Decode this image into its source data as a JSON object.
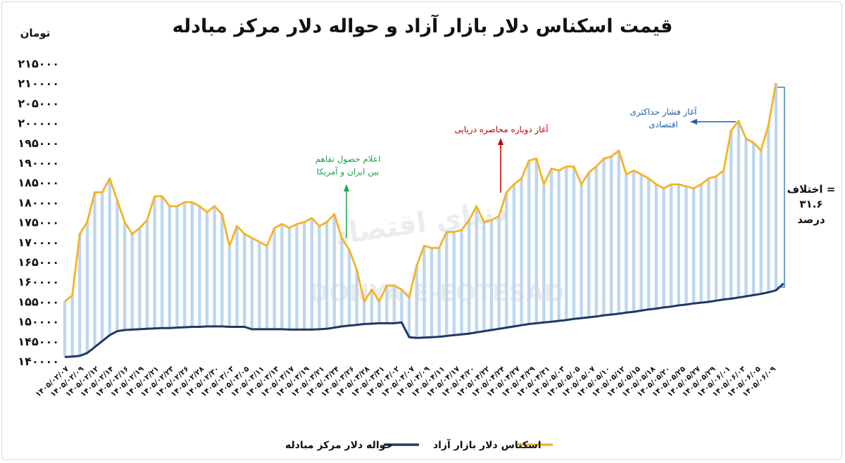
{
  "chart_data": {
    "type": "line",
    "title": "قیمت اسکناس دلار بازار آزاد و حواله دلار مرکز مبادله",
    "ylabel": "تومان",
    "ylim": [
      140000,
      215000
    ],
    "y_ticks": [
      "۱۴۰۰۰۰",
      "۱۴۵۰۰۰",
      "۱۵۰۰۰۰",
      "۱۵۵۰۰۰",
      "۱۶۰۰۰۰",
      "۱۶۵۰۰۰",
      "۱۷۰۰۰۰",
      "۱۷۵۰۰۰",
      "۱۸۰۰۰۰",
      "۱۸۵۰۰۰",
      "۱۹۰۰۰۰",
      "۱۹۵۰۰۰",
      "۲۰۰۰۰۰",
      "۲۰۵۰۰۰",
      "۲۱۰۰۰۰",
      "۲۱۵۰۰۰"
    ],
    "x_labels": [
      "۱۴۰۵/۰۲/۰۷",
      "۱۴۰۵/۰۲/۰۹",
      "۱۴۰۵/۰۲/۱۲",
      "۱۴۰۵/۰۲/۱۴",
      "۱۴۰۵/۰۲/۱۶",
      "۱۴۰۵/۰۲/۱۹",
      "۱۴۰۵/۰۲/۲۱",
      "۱۴۰۵/۰۲/۲۳",
      "۱۴۰۵/۰۲/۲۶",
      "۱۴۰۵/۰۲/۲۸",
      "۱۴۰۵/۰۲/۳۰",
      "۱۴۰۵/۰۳/۰۳",
      "۱۴۰۵/۰۳/۰۵",
      "۱۴۰۵/۰۳/۱۱",
      "۱۴۰۵/۰۳/۱۳",
      "۱۴۰۵/۰۳/۱۷",
      "۱۴۰۵/۰۳/۱۹",
      "۱۴۰۵/۰۳/۲۱",
      "۱۴۰۵/۰۳/۲۴",
      "۱۴۰۵/۰۳/۲۶",
      "۱۴۰۵/۰۳/۲۸",
      "۱۴۰۵/۰۳/۳۱",
      "۱۴۰۵/۰۴/۰۲",
      "۱۴۰۵/۰۴/۰۷",
      "۱۴۰۵/۰۴/۰۹",
      "۱۴۰۵/۰۴/۱۱",
      "۱۴۰۵/۰۴/۱۷",
      "۱۴۰۵/۰۴/۲۰",
      "۱۴۰۵/۰۴/۲۲",
      "۱۴۰۵/۰۴/۲۴",
      "۱۴۰۵/۰۴/۲۷",
      "۱۴۰۵/۰۴/۲۹",
      "۱۴۰۵/۰۴/۳۱",
      "۱۴۰۵/۰۵/۰۳",
      "۱۴۰۵/۰۵/۰۵",
      "۱۴۰۵/۰۵/۰۷",
      "۱۴۰۵/۰۵/۱۰",
      "۱۴۰۵/۰۵/۱۲",
      "۱۴۰۵/۰۵/۱۵",
      "۱۴۰۵/۰۵/۱۸",
      "۱۴۰۵/۰۵/۲۰",
      "۱۴۰۵/۰۵/۲۵",
      "۱۴۰۵/۰۵/۲۷",
      "۱۴۰۵/۰۵/۲۹",
      "۱۴۰۵/۰۶/۰۱",
      "۱۴۰۵/۰۶/۰۳",
      "۱۴۰۵/۰۶/۰۵",
      "۱۴۰۵/۰۶/۰۹"
    ],
    "series": [
      {
        "name": "اسکناس دلار بازار آزاد",
        "color": "#f5b324",
        "values": [
          155000,
          156500,
          172000,
          175000,
          182500,
          182500,
          186000,
          180500,
          175000,
          172000,
          173500,
          175500,
          181500,
          181500,
          179000,
          179000,
          180000,
          180000,
          179000,
          177500,
          179000,
          177000,
          169000,
          174000,
          172000,
          171000,
          170000,
          169000,
          173500,
          174500,
          173500,
          174500,
          175000,
          176000,
          174000,
          175000,
          177000,
          171000,
          168000,
          163000,
          155000,
          158000,
          155000,
          159000,
          159000,
          158000,
          156000,
          164000,
          169000,
          168500,
          168500,
          172500,
          172500,
          173000,
          175500,
          179000,
          175000,
          175500,
          176500,
          182500,
          184500,
          186000,
          190500,
          191000,
          184500,
          188500,
          188000,
          189000,
          189000,
          184500,
          187500,
          189000,
          191000,
          191500,
          193000,
          187000,
          188000,
          187000,
          186000,
          184500,
          183500,
          184500,
          184500,
          184000,
          183500,
          184500,
          186000,
          186500,
          188000,
          198000,
          200500,
          196000,
          195000,
          193000,
          199500,
          210000
        ],
        "first_x_index": 0
      },
      {
        "name": "حواله دلار مرکز مبادله",
        "color": "#1f3864",
        "values": [
          141000,
          141100,
          141300,
          142000,
          143500,
          145000,
          146500,
          147500,
          147800,
          147900,
          148000,
          148100,
          148200,
          148300,
          148300,
          148400,
          148500,
          148600,
          148600,
          148700,
          148700,
          148700,
          148600,
          148600,
          148600,
          148000,
          148000,
          148000,
          148000,
          148000,
          147900,
          147900,
          147900,
          147900,
          148000,
          148100,
          148400,
          148700,
          148900,
          149100,
          149300,
          149400,
          149500,
          149500,
          149500,
          149700,
          146000,
          145800,
          145900,
          146000,
          146100,
          146300,
          146500,
          146700,
          146900,
          147200,
          147500,
          147800,
          148100,
          148400,
          148700,
          149000,
          149300,
          149500,
          149700,
          149900,
          150100,
          150300,
          150600,
          150800,
          151000,
          151200,
          151500,
          151700,
          151900,
          152200,
          152400,
          152700,
          153000,
          153200,
          153500,
          153700,
          154000,
          154200,
          154500,
          154700,
          154900,
          155200,
          155500,
          155700,
          156000,
          156300,
          156600,
          156900,
          157300,
          157800,
          159500
        ],
        "first_x_index": 0
      }
    ],
    "annotations": [
      {
        "text_lines": [
          "اعلام حصول تفاهم",
          "بین ایران و آمریکا"
        ],
        "color": "#1aa34a"
      },
      {
        "text_lines": [
          "آغاز دوباره محاصره دریایی"
        ],
        "color": "#c00000"
      },
      {
        "text_lines": [
          "آغاز فشار حداکثری",
          "اقتصادی"
        ],
        "color": "#1f5fa8"
      }
    ],
    "difference_label": [
      "اختلاف =",
      "۳۱.۶",
      "درصد"
    ],
    "watermark": [
      "دنیای اقتصاد",
      "DONYA-E-EQTESAD"
    ],
    "legend": {
      "position": "bottom"
    },
    "grid": false
  }
}
